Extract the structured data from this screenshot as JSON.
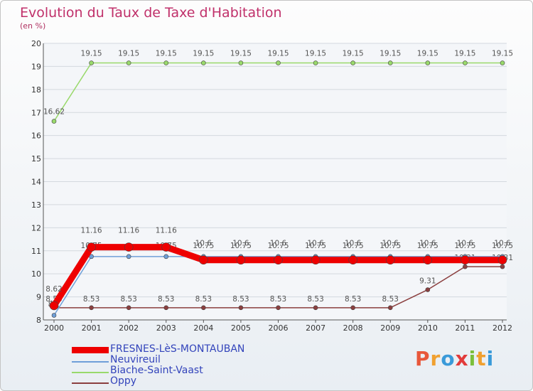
{
  "header": {
    "title": "Evolution du Taux de Taxe d'Habitation",
    "subtitle": "(en %)"
  },
  "logo": {
    "text": "Proxiti",
    "colors": [
      "#e8573a",
      "#f0a030",
      "#3a9ad9",
      "#e23b3b",
      "#7bbf3a",
      "#f0a030",
      "#3a9ad9"
    ]
  },
  "chart_data": {
    "type": "line",
    "title": "Evolution du Taux de Taxe d'Habitation",
    "ylabel": "(en %)",
    "xlabel": "",
    "x": [
      "2000",
      "2001",
      "2002",
      "2003",
      "2004",
      "2005",
      "2006",
      "2007",
      "2008",
      "2009",
      "2010",
      "2011",
      "2012"
    ],
    "ylim": [
      8,
      20
    ],
    "y_ticks": [
      "8",
      "9",
      "10",
      "11",
      "12",
      "13",
      "14",
      "15",
      "16",
      "17",
      "18",
      "19",
      "20"
    ],
    "grid": "horizontal",
    "legend_position": "bottom-left",
    "series": [
      {
        "name": "FRESNES-LèS-MONTAUBAN",
        "color": "#ee0000",
        "values": [
          8.62,
          11.16,
          11.16,
          11.16,
          10.6,
          10.6,
          10.6,
          10.6,
          10.6,
          10.6,
          10.6,
          10.6,
          10.6
        ],
        "labels": [
          "8.62",
          "11.16",
          "11.16",
          "11.16",
          "10.6",
          "10.6",
          "10.6",
          "10.6",
          "10.6",
          "10.6",
          "10.6",
          "10.6",
          "10.6"
        ]
      },
      {
        "name": "Neuvireuil",
        "color": "#6f9fd8",
        "values": [
          8.2,
          10.75,
          10.75,
          10.75,
          10.75,
          10.75,
          10.75,
          10.75,
          10.75,
          10.75,
          10.75,
          10.75,
          10.75
        ],
        "labels": [
          "8.2",
          "10.75",
          "",
          "10.75",
          "10.75",
          "10.75",
          "10.75",
          "10.75",
          "10.75",
          "10.75",
          "10.75",
          "10.75",
          "10.75"
        ]
      },
      {
        "name": "Biache-Saint-Vaast",
        "color": "#99d96b",
        "values": [
          16.62,
          19.15,
          19.15,
          19.15,
          19.15,
          19.15,
          19.15,
          19.15,
          19.15,
          19.15,
          19.15,
          19.15,
          19.15
        ],
        "labels": [
          "16.62",
          "19.15",
          "19.15",
          "19.15",
          "19.15",
          "19.15",
          "19.15",
          "19.15",
          "19.15",
          "19.15",
          "19.15",
          "19.15",
          "19.15"
        ]
      },
      {
        "name": "Oppy",
        "color": "#8b3f3f",
        "values": [
          8.53,
          8.53,
          8.53,
          8.53,
          8.53,
          8.53,
          8.53,
          8.53,
          8.53,
          8.53,
          9.31,
          10.31,
          10.31
        ],
        "labels": [
          "8.53",
          "8.53",
          "8.53",
          "8.53",
          "8.53",
          "8.53",
          "8.53",
          "8.53",
          "8.53",
          "8.53",
          "9.31",
          "10.31",
          "10.31"
        ]
      }
    ]
  }
}
